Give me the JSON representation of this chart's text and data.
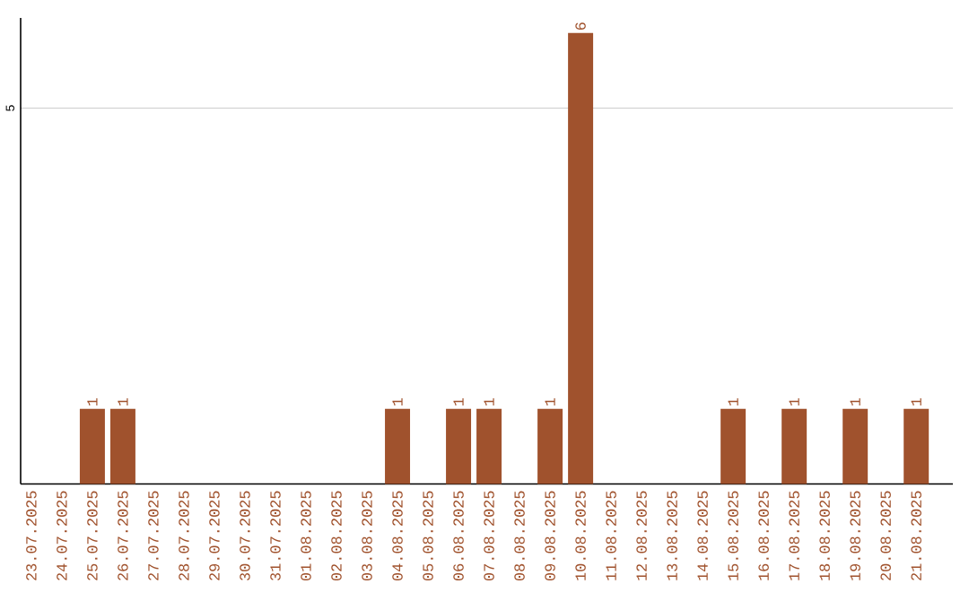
{
  "chart_data": {
    "type": "bar",
    "categories": [
      "23.07.2025",
      "24.07.2025",
      "25.07.2025",
      "26.07.2025",
      "27.07.2025",
      "28.07.2025",
      "29.07.2025",
      "30.07.2025",
      "31.07.2025",
      "01.08.2025",
      "02.08.2025",
      "03.08.2025",
      "04.08.2025",
      "05.08.2025",
      "06.08.2025",
      "07.08.2025",
      "08.08.2025",
      "09.08.2025",
      "10.08.2025",
      "11.08.2025",
      "12.08.2025",
      "13.08.2025",
      "14.08.2025",
      "15.08.2025",
      "16.08.2025",
      "17.08.2025",
      "18.08.2025",
      "19.08.2025",
      "20.08.2025",
      "21.08.2025"
    ],
    "values": [
      0,
      0,
      1,
      1,
      0,
      0,
      0,
      0,
      0,
      0,
      0,
      0,
      1,
      0,
      1,
      1,
      0,
      1,
      6,
      0,
      0,
      0,
      0,
      1,
      0,
      1,
      0,
      1,
      0,
      1
    ],
    "value_labels": [
      null,
      null,
      "1",
      "1",
      null,
      null,
      null,
      null,
      null,
      null,
      null,
      null,
      "1",
      null,
      "1",
      "1",
      null,
      "1",
      "6",
      null,
      null,
      null,
      null,
      "1",
      null,
      "1",
      null,
      "1",
      null,
      "1"
    ],
    "color": "#a0522d",
    "ylim": [
      0,
      6.2
    ],
    "yticks": [
      5
    ],
    "grid": "y"
  }
}
